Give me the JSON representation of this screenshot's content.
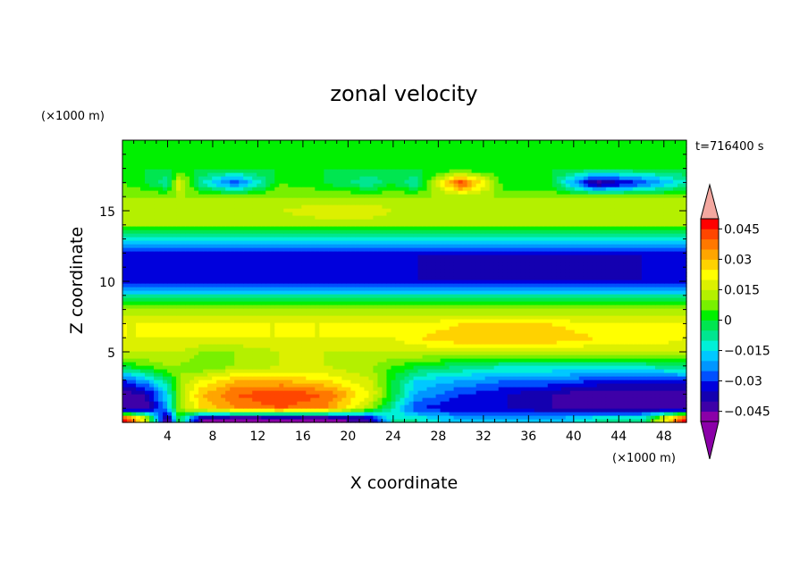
{
  "chart_data": {
    "type": "heatmap",
    "title": "zonal velocity",
    "xlabel": "X coordinate",
    "ylabel": "Z coordinate",
    "x_unit": "(×1000 m)",
    "y_unit": "(×1000 m)",
    "time_label": "t=716400 s",
    "xlim": [
      0,
      50
    ],
    "ylim": [
      0,
      20
    ],
    "x_ticks": [
      4,
      8,
      12,
      16,
      20,
      24,
      28,
      32,
      36,
      40,
      44,
      48
    ],
    "y_ticks": [
      5,
      10,
      15
    ],
    "colorbar": {
      "levels": [
        -0.05,
        -0.045,
        -0.04,
        -0.035,
        -0.03,
        -0.025,
        -0.02,
        -0.015,
        -0.01,
        -0.005,
        0,
        0.005,
        0.01,
        0.015,
        0.02,
        0.025,
        0.03,
        0.035,
        0.04,
        0.045,
        0.05
      ],
      "tick_labels": [
        "0.045",
        "0.03",
        "0.015",
        "0",
        "−0.015",
        "−0.03",
        "−0.045"
      ],
      "tick_values": [
        0.045,
        0.03,
        0.015,
        0,
        -0.015,
        -0.03,
        -0.045
      ],
      "colors": [
        "#8b00a8",
        "#3e00a8",
        "#1400b0",
        "#0000dc",
        "#0050ff",
        "#0096ff",
        "#00c8ff",
        "#00f0d8",
        "#00e690",
        "#00e650",
        "#00f000",
        "#78f000",
        "#b4f000",
        "#dcf000",
        "#ffff00",
        "#ffd200",
        "#ffa500",
        "#ff7800",
        "#ff4600",
        "#ff0000"
      ],
      "under_color": "#8b00a8",
      "over_color": "#f4a8a0"
    },
    "field_description": "zonal velocity u(x,z)",
    "samples_x": [
      0,
      2,
      4,
      5,
      7,
      10,
      14,
      18,
      22,
      24,
      26,
      30,
      34,
      38,
      42,
      46,
      50
    ],
    "samples_z": [
      0.3,
      1,
      2,
      3,
      4,
      5,
      6,
      7,
      8,
      9,
      10,
      11,
      12,
      13,
      14,
      15,
      16,
      17,
      18,
      19.5
    ],
    "values": [
      [
        0.05,
        0.02,
        -0.05,
        0.0,
        -0.045,
        -0.05,
        -0.05,
        -0.05,
        -0.04,
        -0.01,
        -0.01,
        -0.02,
        -0.02,
        -0.02,
        -0.01,
        -0.01,
        0.05
      ],
      [
        -0.045,
        -0.045,
        -0.02,
        0.01,
        0.025,
        0.035,
        0.04,
        0.035,
        0.01,
        -0.01,
        -0.03,
        -0.035,
        -0.035,
        -0.04,
        -0.045,
        -0.045,
        -0.045
      ],
      [
        -0.045,
        -0.04,
        -0.015,
        0.01,
        0.03,
        0.04,
        0.045,
        0.04,
        0.02,
        0.0,
        -0.02,
        -0.03,
        -0.035,
        -0.04,
        -0.045,
        -0.045,
        -0.045
      ],
      [
        -0.03,
        -0.02,
        -0.005,
        0.01,
        0.02,
        0.03,
        0.03,
        0.025,
        0.015,
        0.0,
        -0.015,
        -0.02,
        -0.025,
        -0.025,
        -0.03,
        -0.03,
        -0.03
      ],
      [
        0.0,
        0.005,
        0.01,
        0.01,
        0.005,
        0.01,
        0.015,
        0.015,
        0.01,
        0.005,
        0.0,
        -0.005,
        -0.01,
        -0.01,
        -0.01,
        -0.01,
        -0.005
      ],
      [
        0.015,
        0.015,
        0.015,
        0.015,
        0.01,
        0.01,
        0.015,
        0.015,
        0.015,
        0.015,
        0.015,
        0.015,
        0.015,
        0.015,
        0.015,
        0.015,
        0.015
      ],
      [
        0.02,
        0.02,
        0.02,
        0.02,
        0.02,
        0.02,
        0.02,
        0.02,
        0.02,
        0.02,
        0.025,
        0.03,
        0.03,
        0.03,
        0.025,
        0.025,
        0.02
      ],
      [
        0.02,
        0.02,
        0.02,
        0.02,
        0.02,
        0.02,
        0.02,
        0.02,
        0.02,
        0.02,
        0.02,
        0.025,
        0.025,
        0.025,
        0.02,
        0.02,
        0.02
      ],
      [
        0.01,
        0.01,
        0.01,
        0.01,
        0.01,
        0.01,
        0.01,
        0.01,
        0.01,
        0.01,
        0.01,
        0.01,
        0.01,
        0.01,
        0.01,
        0.01,
        0.01
      ],
      [
        -0.01,
        -0.01,
        -0.01,
        -0.01,
        -0.01,
        -0.01,
        -0.01,
        -0.01,
        -0.01,
        -0.01,
        -0.01,
        -0.01,
        -0.01,
        -0.01,
        -0.01,
        -0.01,
        -0.01
      ],
      [
        -0.035,
        -0.035,
        -0.035,
        -0.035,
        -0.035,
        -0.035,
        -0.035,
        -0.035,
        -0.035,
        -0.035,
        -0.035,
        -0.035,
        -0.035,
        -0.035,
        -0.035,
        -0.035,
        -0.035
      ],
      [
        -0.035,
        -0.035,
        -0.035,
        -0.035,
        -0.035,
        -0.035,
        -0.035,
        -0.035,
        -0.035,
        -0.035,
        -0.035,
        -0.04,
        -0.04,
        -0.04,
        -0.04,
        -0.035,
        -0.035
      ],
      [
        -0.035,
        -0.035,
        -0.035,
        -0.035,
        -0.035,
        -0.035,
        -0.035,
        -0.035,
        -0.035,
        -0.035,
        -0.035,
        -0.035,
        -0.035,
        -0.035,
        -0.035,
        -0.035,
        -0.035
      ],
      [
        -0.015,
        -0.015,
        -0.015,
        -0.015,
        -0.015,
        -0.015,
        -0.015,
        -0.015,
        -0.015,
        -0.015,
        -0.015,
        -0.015,
        -0.015,
        -0.015,
        -0.015,
        -0.015,
        -0.015
      ],
      [
        0.01,
        0.01,
        0.01,
        0.01,
        0.01,
        0.01,
        0.01,
        0.01,
        0.01,
        0.01,
        0.01,
        0.01,
        0.01,
        0.01,
        0.01,
        0.01,
        0.01
      ],
      [
        0.015,
        0.015,
        0.015,
        0.015,
        0.015,
        0.015,
        0.015,
        0.02,
        0.02,
        0.015,
        0.015,
        0.015,
        0.015,
        0.015,
        0.015,
        0.015,
        0.015
      ],
      [
        0.01,
        0.01,
        0.01,
        0.01,
        0.01,
        0.01,
        0.01,
        0.01,
        0.01,
        0.01,
        0.01,
        0.01,
        0.01,
        0.01,
        0.01,
        0.01,
        0.01
      ],
      [
        0.005,
        0.0,
        -0.01,
        0.02,
        -0.01,
        -0.03,
        0.005,
        0.0,
        -0.01,
        0.0,
        -0.01,
        0.045,
        0.0,
        0.0,
        -0.045,
        -0.03,
        -0.01
      ],
      [
        0.0,
        0.0,
        0.0,
        0.0,
        0.0,
        0.0,
        0.0,
        0.0,
        0.0,
        0.0,
        0.0,
        0.0,
        0.0,
        0.0,
        0.0,
        0.0,
        0.0
      ],
      [
        0.0,
        0.0,
        0.0,
        0.0,
        0.0,
        0.0,
        0.0,
        0.0,
        0.0,
        0.0,
        0.0,
        0.0,
        0.0,
        0.0,
        0.0,
        0.0,
        0.0
      ]
    ]
  }
}
